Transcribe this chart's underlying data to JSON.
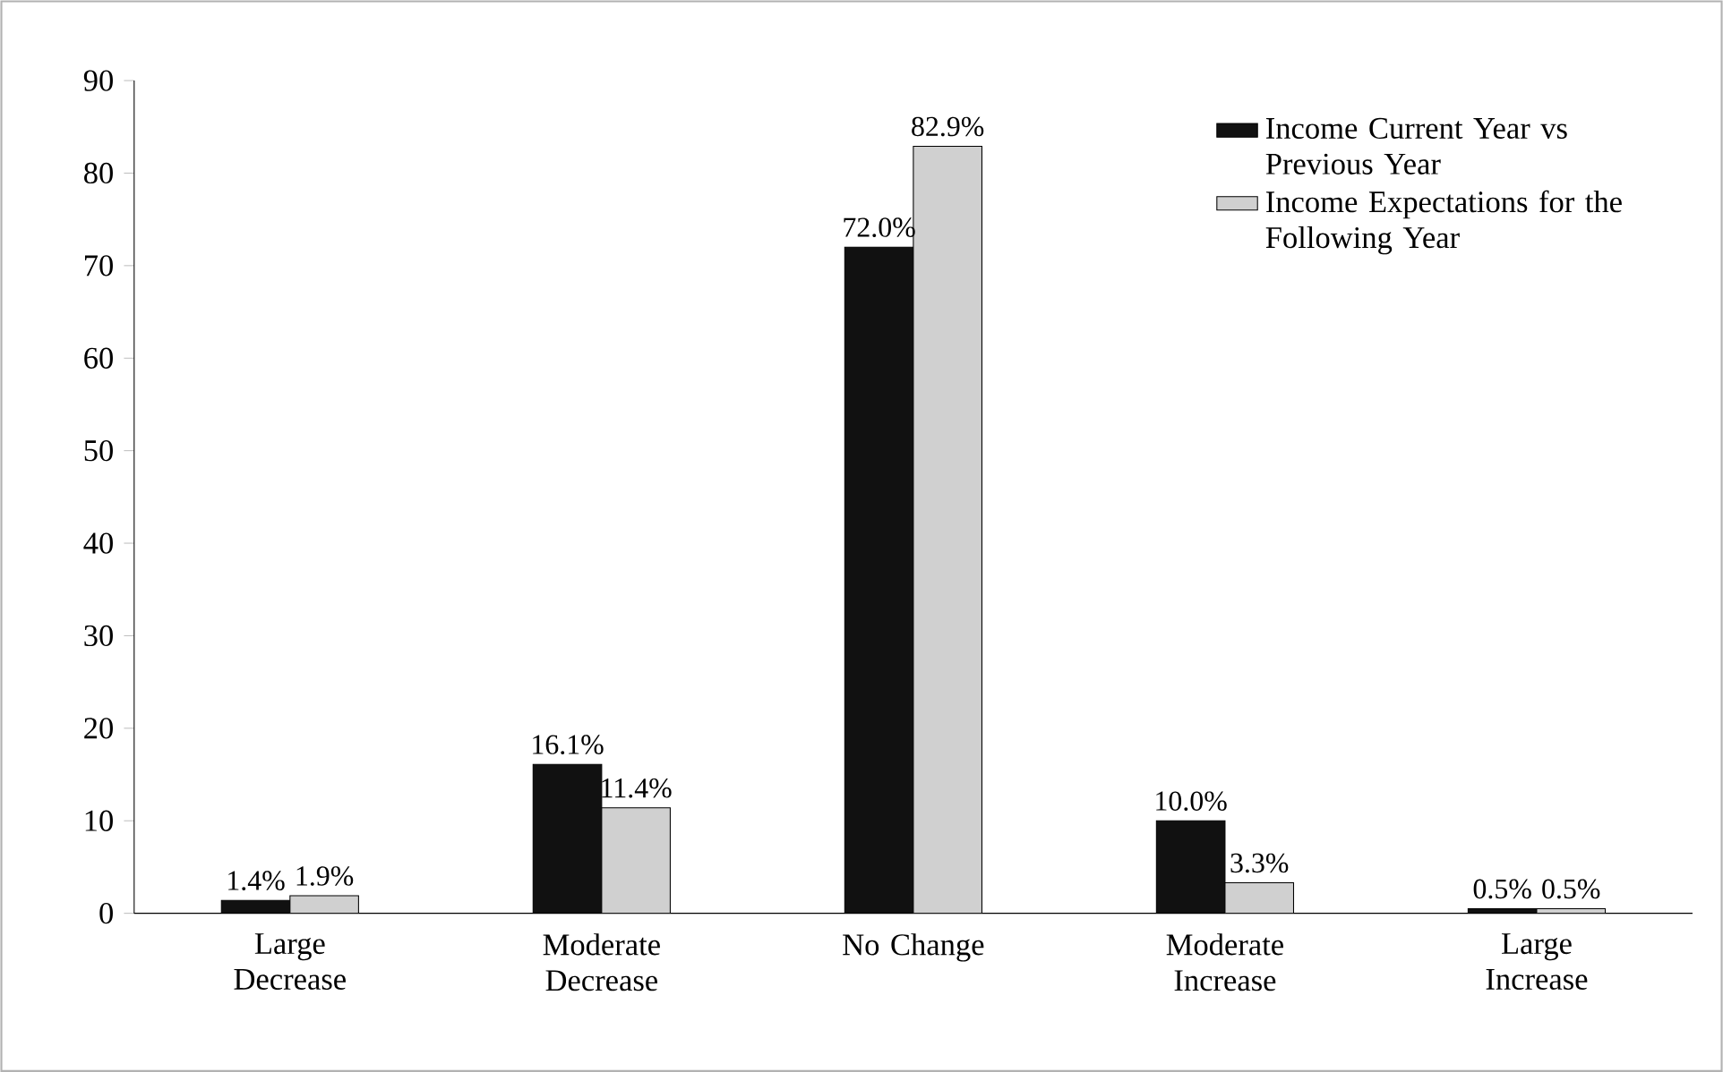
{
  "chart_data": {
    "type": "bar",
    "categories": [
      "Large Decrease",
      "Moderate Decrease",
      "No Change",
      "Moderate Increase",
      "Large Increase"
    ],
    "series": [
      {
        "name": "Income Current Year vs Previous Year",
        "color": "#111111",
        "values": [
          1.4,
          16.1,
          72.0,
          10.0,
          0.5
        ],
        "value_labels": [
          "1.4%",
          "16.1%",
          "72.0%",
          "10.0%",
          "0.5%"
        ]
      },
      {
        "name": "Income Expectations for the Following Year",
        "color": "#d0d0d0",
        "values": [
          1.9,
          11.4,
          82.9,
          3.3,
          0.5
        ],
        "value_labels": [
          "1.9%",
          "11.4%",
          "82.9%",
          "3.3%",
          "0.5%"
        ]
      }
    ],
    "ylim": [
      0,
      90
    ],
    "yticks": [
      0,
      10,
      20,
      30,
      40,
      50,
      60,
      70,
      80,
      90
    ],
    "legend": "top right"
  }
}
